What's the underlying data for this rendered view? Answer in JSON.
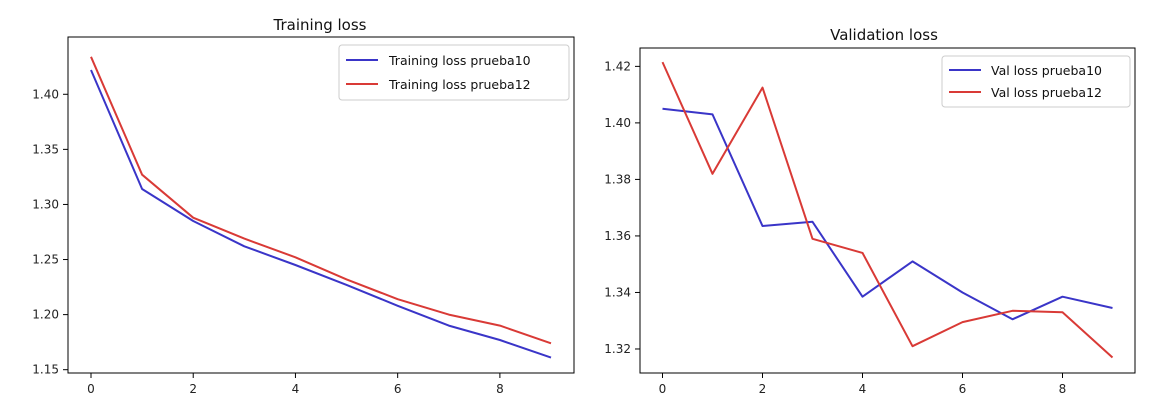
{
  "colors": {
    "series_blue": "#3a35c8",
    "series_red": "#d93a36"
  },
  "chart_data": [
    {
      "type": "line",
      "title": "Training loss",
      "xlabel": "",
      "ylabel": "",
      "x": [
        0,
        1,
        2,
        3,
        4,
        5,
        6,
        7,
        8,
        9
      ],
      "xlim": [
        -0.45,
        9.45
      ],
      "ylim": [
        1.147,
        1.452
      ],
      "xticks": [
        0,
        2,
        4,
        6,
        8
      ],
      "yticks": [
        1.15,
        1.2,
        1.25,
        1.3,
        1.35,
        1.4
      ],
      "ytick_labels": [
        "1.15",
        "1.20",
        "1.25",
        "1.30",
        "1.35",
        "1.40"
      ],
      "grid": false,
      "legend_position": "top-right",
      "series": [
        {
          "name": "Training loss prueba10",
          "color": "#3a35c8",
          "values": [
            1.422,
            1.314,
            1.285,
            1.262,
            1.245,
            1.227,
            1.208,
            1.19,
            1.177,
            1.161
          ]
        },
        {
          "name": "Training loss prueba12",
          "color": "#d93a36",
          "values": [
            1.434,
            1.327,
            1.288,
            1.269,
            1.252,
            1.232,
            1.214,
            1.2,
            1.19,
            1.174
          ]
        }
      ]
    },
    {
      "type": "line",
      "title": "Validation loss",
      "xlabel": "",
      "ylabel": "",
      "x": [
        0,
        1,
        2,
        3,
        4,
        5,
        6,
        7,
        8,
        9
      ],
      "xlim": [
        -0.45,
        9.45
      ],
      "ylim": [
        1.3115,
        1.4265
      ],
      "xticks": [
        0,
        2,
        4,
        6,
        8
      ],
      "yticks": [
        1.32,
        1.34,
        1.36,
        1.38,
        1.4,
        1.42
      ],
      "ytick_labels": [
        "1.32",
        "1.34",
        "1.36",
        "1.38",
        "1.40",
        "1.42"
      ],
      "grid": false,
      "legend_position": "top-right",
      "series": [
        {
          "name": "Val loss prueba10",
          "color": "#3a35c8",
          "values": [
            1.405,
            1.403,
            1.3635,
            1.365,
            1.3385,
            1.351,
            1.34,
            1.3305,
            1.3385,
            1.3345
          ]
        },
        {
          "name": "Val loss prueba12",
          "color": "#d93a36",
          "values": [
            1.4215,
            1.382,
            1.4125,
            1.359,
            1.354,
            1.321,
            1.3295,
            1.3335,
            1.333,
            1.317
          ]
        }
      ]
    }
  ]
}
